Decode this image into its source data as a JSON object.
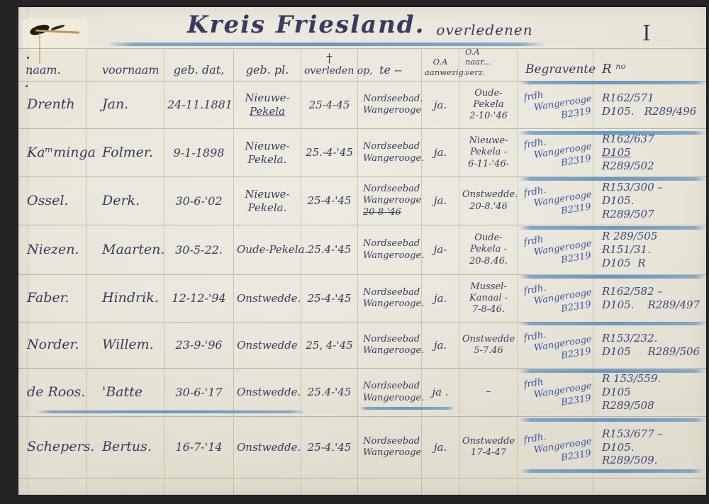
{
  "page": {
    "title": "Kreis Friesland.",
    "subtitle": "overledenen",
    "page_number": "I"
  },
  "colors": {
    "dark_ink": "#3f3760",
    "blue_ink": "#4055aa",
    "navy_ink": "#39497e",
    "crayon_blue": "#6d9cc4",
    "paper": "#e7e4d7"
  },
  "table": {
    "columns": [
      {
        "key": "naam",
        "label_lines": [
          "naam."
        ]
      },
      {
        "key": "voornaam",
        "label_lines": [
          "voornaam"
        ]
      },
      {
        "key": "geb_dat",
        "label_lines": [
          "geb. dat,"
        ]
      },
      {
        "key": "geb_pl",
        "label_lines": [
          "geb. pl."
        ]
      },
      {
        "key": "overleden_op",
        "label_lines": [
          "†",
          "overleden op,"
        ]
      },
      {
        "key": "te",
        "label_lines": [
          "te --"
        ]
      },
      {
        "key": "oa_aanwezig",
        "label_lines": [
          "O.A",
          "aanwezig."
        ]
      },
      {
        "key": "oa_naar_verz",
        "label_lines": [
          "O.A",
          "naar...",
          "verz."
        ]
      },
      {
        "key": "begravente",
        "label_lines": [
          "Begravente"
        ]
      },
      {
        "key": "r_no",
        "label_lines": [
          "R ⁿᵒ"
        ]
      }
    ],
    "rows": [
      {
        "naam": "Drenth",
        "voornaam": "Jan.",
        "geb_dat": "24-11.1881",
        "geb_pl": [
          "Nieuwe-",
          "__Pekela__"
        ],
        "overleden_op": "25-4-45",
        "te": [
          "Nordseebad.",
          "Wangerooge"
        ],
        "oa_aanwezig": "ja.",
        "oa_naar_verz": [
          "Oude-",
          "Pekela",
          "2-10-'46"
        ],
        "begravente": [
          "frdh",
          "Wangerooge",
          "B2319"
        ],
        "r_no": [
          "R162/571",
          "D105.   R289/496"
        ]
      },
      {
        "naam": "Kaᵐminga",
        "voornaam": "Folmer.",
        "geb_dat": "9-1-1898",
        "geb_pl": [
          "Nieuwe-",
          "Pekela."
        ],
        "overleden_op": "25.-4-'45",
        "te": [
          "Nordseebad",
          "Wangerooge."
        ],
        "oa_aanwezig": "ja.",
        "oa_naar_verz": [
          "Nieuwe-",
          "Pekela -",
          "6-11-'46-"
        ],
        "begravente": [
          "frdh.",
          "Wangerooge",
          "B2319"
        ],
        "r_no": [
          "R162/637",
          "__D105__",
          "R289/502"
        ]
      },
      {
        "naam": "Ossel.",
        "voornaam": "Derk.",
        "geb_dat": "30-6-'02",
        "geb_pl": [
          "Nieuwe-",
          "Pekela."
        ],
        "overleden_op": "25-4-'45",
        "te": [
          "Nordseebad",
          "Wangerooge",
          "~~20-8-'46~~"
        ],
        "oa_aanwezig": "ja.",
        "oa_naar_verz": [
          "Onstwedde.",
          "20-8.'46"
        ],
        "begravente": [
          "frdh.",
          "Wangerooge",
          "B2319"
        ],
        "r_no": [
          "R153/300 –",
          "D105.",
          "R289/507"
        ]
      },
      {
        "naam": "Niezen.",
        "voornaam": "Maarten.",
        "geb_dat": "30-5-22.",
        "geb_pl": "Oude-Pekela.",
        "overleden_op": "25.4-'45",
        "te": [
          "Nordseebad",
          "Wangerooge."
        ],
        "oa_aanwezig": "ja-",
        "oa_naar_verz": [
          "Oude-",
          "Pekela -",
          "20-8.46."
        ],
        "begravente": [
          "frdh",
          "Wangerooge",
          "B2319"
        ],
        "r_no": [
          "R 289/505",
          "R151/31.",
          "D105  R"
        ]
      },
      {
        "naam": "Faber.",
        "voornaam": "Hindrik.",
        "geb_dat": "12-12-'94",
        "geb_pl": "Onstwedde.",
        "overleden_op": "25-4-'45",
        "te": [
          "Nordseebad",
          "Wangerooge."
        ],
        "oa_aanwezig": "ja.",
        "oa_naar_verz": [
          "Mussel-",
          "Kanaal -",
          "7-8-46."
        ],
        "begravente": [
          "frdh.",
          "Wangerooge",
          "B2319"
        ],
        "r_no": [
          "R162/582 –",
          "D105.    R289/497"
        ]
      },
      {
        "naam": "Norder.",
        "voornaam": "Willem.",
        "geb_dat": "23-9-'96",
        "geb_pl": "Onstwedde",
        "overleden_op": "25, 4-'45",
        "te": [
          "Nordseebad",
          "Wangerooge."
        ],
        "oa_aanwezig": "ja.",
        "oa_naar_verz": [
          "Onstwedde",
          "5-7.46"
        ],
        "begravente": [
          "frdh.",
          "Wangerooge",
          "B2319"
        ],
        "r_no": [
          "R153/232.",
          "D105     R289/506"
        ]
      },
      {
        "naam": "de Roos.",
        "voornaam": "'Batte",
        "geb_dat": "30-6-'17",
        "geb_pl": "Onstwedde.",
        "overleden_op": "25.4-'45",
        "te": [
          "Nordseebad",
          "Wangerooge."
        ],
        "oa_aanwezig": "ja .",
        "oa_naar_verz": "–",
        "begravente": [
          "frdh",
          "Wangerooge",
          "B2319"
        ],
        "r_no": [
          "R 153/559.",
          "D105",
          "R289/508"
        ]
      },
      {
        "naam": "Schepers.",
        "voornaam": "Bertus.",
        "geb_dat": "16-7-'14",
        "geb_pl": "Onstwedde.",
        "overleden_op": "25-4.'45",
        "te": [
          "Nordseebad",
          "Wangerooge"
        ],
        "oa_aanwezig": "ja.",
        "oa_naar_verz": [
          "Onstwedde",
          "17-4-47"
        ],
        "begravente": [
          "frdh.",
          "Wangerooge",
          "B2319"
        ],
        "r_no": [
          "R153/677 –",
          "D105.",
          "R289/509."
        ]
      }
    ]
  }
}
